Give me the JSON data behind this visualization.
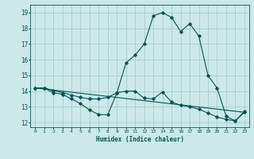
{
  "xlabel": "Humidex (Indice chaleur)",
  "background_color": "#cce8e8",
  "grid_color": "#aacccc",
  "line_color": "#005555",
  "xlim": [
    -0.5,
    23.5
  ],
  "ylim": [
    11.7,
    19.5
  ],
  "yticks": [
    12,
    13,
    14,
    15,
    16,
    17,
    18,
    19
  ],
  "xticks": [
    0,
    1,
    2,
    3,
    4,
    5,
    6,
    7,
    8,
    9,
    10,
    11,
    12,
    13,
    14,
    15,
    16,
    17,
    18,
    19,
    20,
    21,
    22,
    23
  ],
  "line1_x": [
    0,
    1,
    2,
    3,
    4,
    5,
    6,
    7,
    8,
    9,
    10,
    11,
    12,
    13,
    14,
    15,
    16,
    17,
    18,
    19,
    20,
    21,
    22,
    23
  ],
  "line1_y": [
    14.2,
    14.2,
    13.9,
    13.8,
    13.5,
    13.2,
    12.8,
    12.5,
    12.5,
    13.9,
    15.8,
    16.3,
    17.0,
    18.8,
    19.0,
    18.7,
    17.8,
    18.3,
    17.5,
    15.0,
    14.2,
    12.4,
    12.1,
    12.7
  ],
  "line2_x": [
    0,
    1,
    2,
    3,
    4,
    5,
    6,
    7,
    8,
    9,
    10,
    11,
    12,
    13,
    14,
    15,
    16,
    17,
    18,
    19,
    20,
    21,
    22,
    23
  ],
  "line2_y": [
    14.2,
    14.2,
    14.05,
    13.9,
    13.75,
    13.6,
    13.5,
    13.5,
    13.6,
    13.9,
    14.0,
    14.0,
    13.55,
    13.5,
    13.95,
    13.3,
    13.1,
    13.0,
    12.85,
    12.6,
    12.35,
    12.2,
    12.1,
    12.65
  ],
  "line3_x": [
    0,
    23
  ],
  "line3_y": [
    14.2,
    12.65
  ]
}
